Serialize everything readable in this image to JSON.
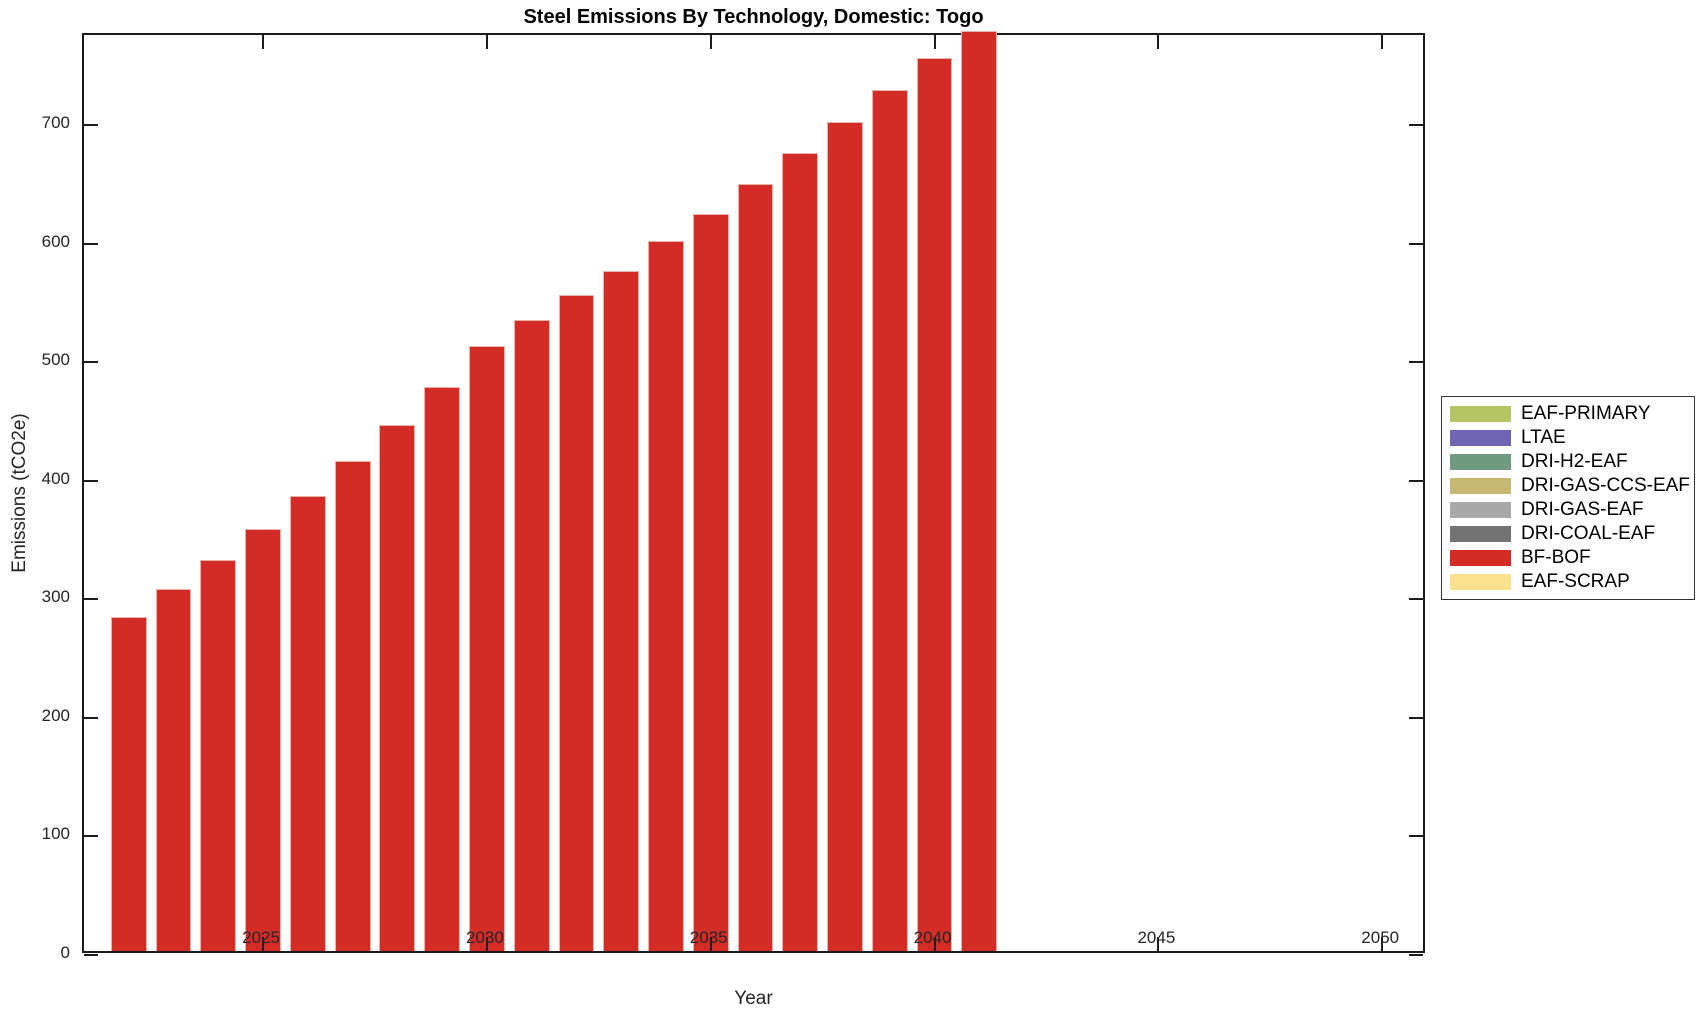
{
  "figure": {
    "background": "#ffffff",
    "axis_color": "#1c1c1c",
    "text_color": "#262626"
  },
  "chart_data": {
    "type": "bar",
    "title": "Steel Emissions By Technology, Domestic: Togo",
    "xlabel": "Year",
    "ylabel": "Emissions (tCO2e)",
    "xlim": [
      2021,
      2051
    ],
    "ylim": [
      0,
      776
    ],
    "xticks": [
      2025,
      2030,
      2035,
      2040,
      2045,
      2050
    ],
    "yticks": [
      0,
      100,
      200,
      300,
      400,
      500,
      600,
      700
    ],
    "grid": false,
    "bar_width_years": 0.8,
    "categories": [
      2022,
      2023,
      2024,
      2025,
      2026,
      2027,
      2028,
      2029,
      2030,
      2031,
      2032,
      2033,
      2034,
      2035,
      2036,
      2037,
      2038,
      2039,
      2040,
      2041
    ],
    "series": [
      {
        "name": "BF-BOF",
        "color": "#d32b26",
        "values": [
          282,
          305,
          330,
          356,
          384,
          413,
          444,
          476,
          510,
          532,
          553,
          574,
          599,
          622,
          647,
          673,
          699,
          726,
          753,
          776
        ]
      }
    ],
    "legend": {
      "position": "right-outside",
      "entries": [
        {
          "label": "EAF-PRIMARY",
          "color": "#b5c564"
        },
        {
          "label": "LTAE",
          "color": "#7065b5"
        },
        {
          "label": "DRI-H2-EAF",
          "color": "#6f9a80"
        },
        {
          "label": "DRI-GAS-CCS-EAF",
          "color": "#c4b873"
        },
        {
          "label": "DRI-GAS-EAF",
          "color": "#a8a8a8"
        },
        {
          "label": "DRI-COAL-EAF",
          "color": "#737373"
        },
        {
          "label": "BF-BOF",
          "color": "#d32b26"
        },
        {
          "label": "EAF-SCRAP",
          "color": "#fbe08e"
        }
      ]
    }
  }
}
